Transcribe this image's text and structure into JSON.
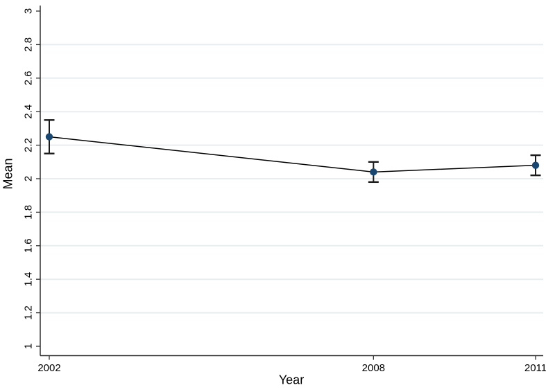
{
  "figure": {
    "background": "#ffffff"
  },
  "chart_data": {
    "type": "line",
    "title": "",
    "xlabel": "Year",
    "ylabel": "Mean",
    "x": [
      2002,
      2008,
      2011
    ],
    "series": [
      {
        "name": "Mean",
        "values": [
          2.25,
          2.04,
          2.08
        ],
        "ci_low": [
          2.15,
          1.98,
          2.02
        ],
        "ci_high": [
          2.35,
          2.1,
          2.14
        ]
      }
    ],
    "xlim": [
      2002,
      2011
    ],
    "ylim": [
      1,
      3
    ],
    "x_ticks": {
      "values": [
        2002,
        2008,
        2011
      ],
      "labels": [
        "2002",
        "2008",
        "2011"
      ]
    },
    "y_ticks": {
      "values": [
        1,
        1.2,
        1.4,
        1.6,
        1.8,
        2,
        2.2,
        2.4,
        2.6,
        2.8,
        3
      ],
      "labels": [
        "1",
        "1.2",
        "1.4",
        "1.6",
        "1.8",
        "2",
        "2.2",
        "2.4",
        "2.6",
        "2.8",
        "3"
      ]
    },
    "grid": true,
    "grid_values": [
      1.2,
      1.4,
      1.6,
      1.8,
      2,
      2.2,
      2.4,
      2.6,
      2.8
    ],
    "legend": "none",
    "colors": {
      "marker": "#1a476f",
      "line": "#000000",
      "error_bar": "#1a1a1a",
      "grid": "#e8eeef",
      "axis": "#303030",
      "text": "#000000"
    }
  }
}
